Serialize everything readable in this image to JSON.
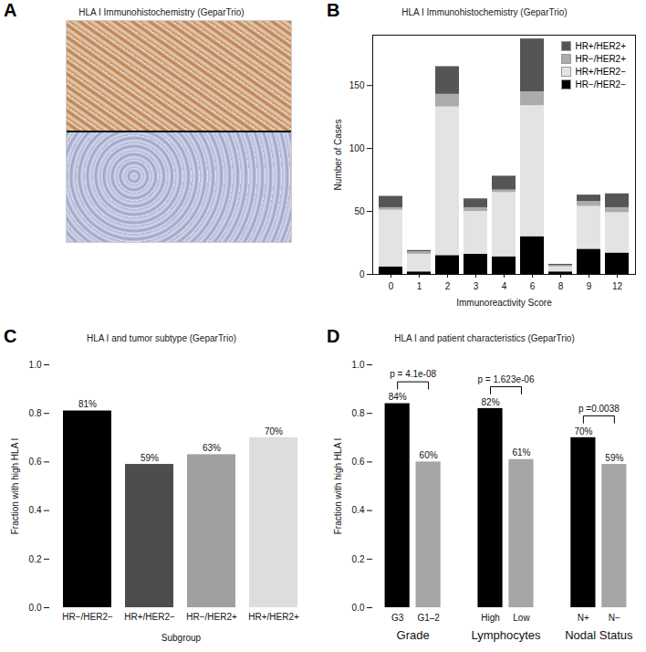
{
  "chart_data": [
    {
      "type": "image",
      "panel": "A",
      "title": "HLA I Immunohistochemistry (GeparTrio)"
    },
    {
      "type": "bar",
      "panel": "B",
      "title": "HLA I Immunohistochemistry (GeparTrio)",
      "x_label": "Immunoreactivity Score",
      "y_label": "Number of Cases",
      "categories": [
        "0",
        "1",
        "2",
        "3",
        "4",
        "6",
        "8",
        "9",
        "12"
      ],
      "stacked": true,
      "legend": "top-right",
      "ylim": [
        0,
        190
      ],
      "yticks": [
        0,
        50,
        100,
        150
      ],
      "series": [
        {
          "name": "HR−/HER2−",
          "color": "#000000",
          "values": [
            6,
            2,
            15,
            16,
            14,
            30,
            2,
            20,
            17
          ]
        },
        {
          "name": "HR+/HER2−",
          "color": "#e3e3e3",
          "values": [
            45,
            14,
            118,
            34,
            51,
            104,
            4,
            34,
            32
          ]
        },
        {
          "name": "HR−/HER2+",
          "color": "#ababab",
          "values": [
            2,
            2,
            10,
            3,
            2,
            11,
            1,
            4,
            4
          ]
        },
        {
          "name": "HR+/HER2+",
          "color": "#555555",
          "values": [
            9,
            1,
            22,
            7,
            11,
            42,
            1,
            5,
            11
          ]
        }
      ]
    },
    {
      "type": "bar",
      "panel": "C",
      "title": "HLA I and tumor subtype (GeparTrio)",
      "x_label": "Subgroup",
      "y_label": "Fraction with high HLA I",
      "categories": [
        "HR−/HER2−",
        "HR+/HER2−",
        "HR−/HER2+",
        "HR+/HER2+"
      ],
      "values": [
        0.81,
        0.59,
        0.63,
        0.7
      ],
      "value_labels": [
        "81%",
        "59%",
        "63%",
        "70%"
      ],
      "data_labels": true,
      "colors": [
        "#000000",
        "#4d4d4d",
        "#a0a0a0",
        "#dddddd"
      ],
      "ylim": [
        0,
        1
      ],
      "yticks": [
        {
          "value": 0,
          "label": "0.0"
        },
        {
          "value": 0.2,
          "label": "0.2"
        },
        {
          "value": 0.4,
          "label": "0.4"
        },
        {
          "value": 0.6,
          "label": "0.6"
        },
        {
          "value": 0.8,
          "label": "0.8"
        },
        {
          "value": 1,
          "label": "1.0"
        }
      ]
    },
    {
      "type": "bar",
      "panel": "D",
      "title": "HLA I and patient characteristics (GeparTrio)",
      "y_label": "Fraction with high HLA I",
      "categories": [
        "G3",
        "G1–2",
        "High",
        "Low",
        "N+",
        "N−"
      ],
      "values": [
        0.84,
        0.6,
        0.82,
        0.61,
        0.7,
        0.59
      ],
      "value_labels": [
        "84%",
        "60%",
        "82%",
        "61%",
        "70%",
        "59%"
      ],
      "data_labels": true,
      "colors": [
        "#000000",
        "#a6a6a6",
        "#000000",
        "#a6a6a6",
        "#000000",
        "#a6a6a6"
      ],
      "group_labels": [
        "Grade",
        "Lymphocytes",
        "Nodal Status"
      ],
      "annotations": [
        "p = 4.1e-08",
        "p = 1.623e-06",
        "p =0.0038"
      ],
      "ylim": [
        0,
        1
      ],
      "yticks": [
        {
          "value": 0,
          "label": "0.0"
        },
        {
          "value": 0.2,
          "label": "0.2"
        },
        {
          "value": 0.4,
          "label": "0.4"
        },
        {
          "value": 0.6,
          "label": "0.6"
        },
        {
          "value": 0.8,
          "label": "0.8"
        },
        {
          "value": 1,
          "label": "1.0"
        }
      ]
    }
  ]
}
